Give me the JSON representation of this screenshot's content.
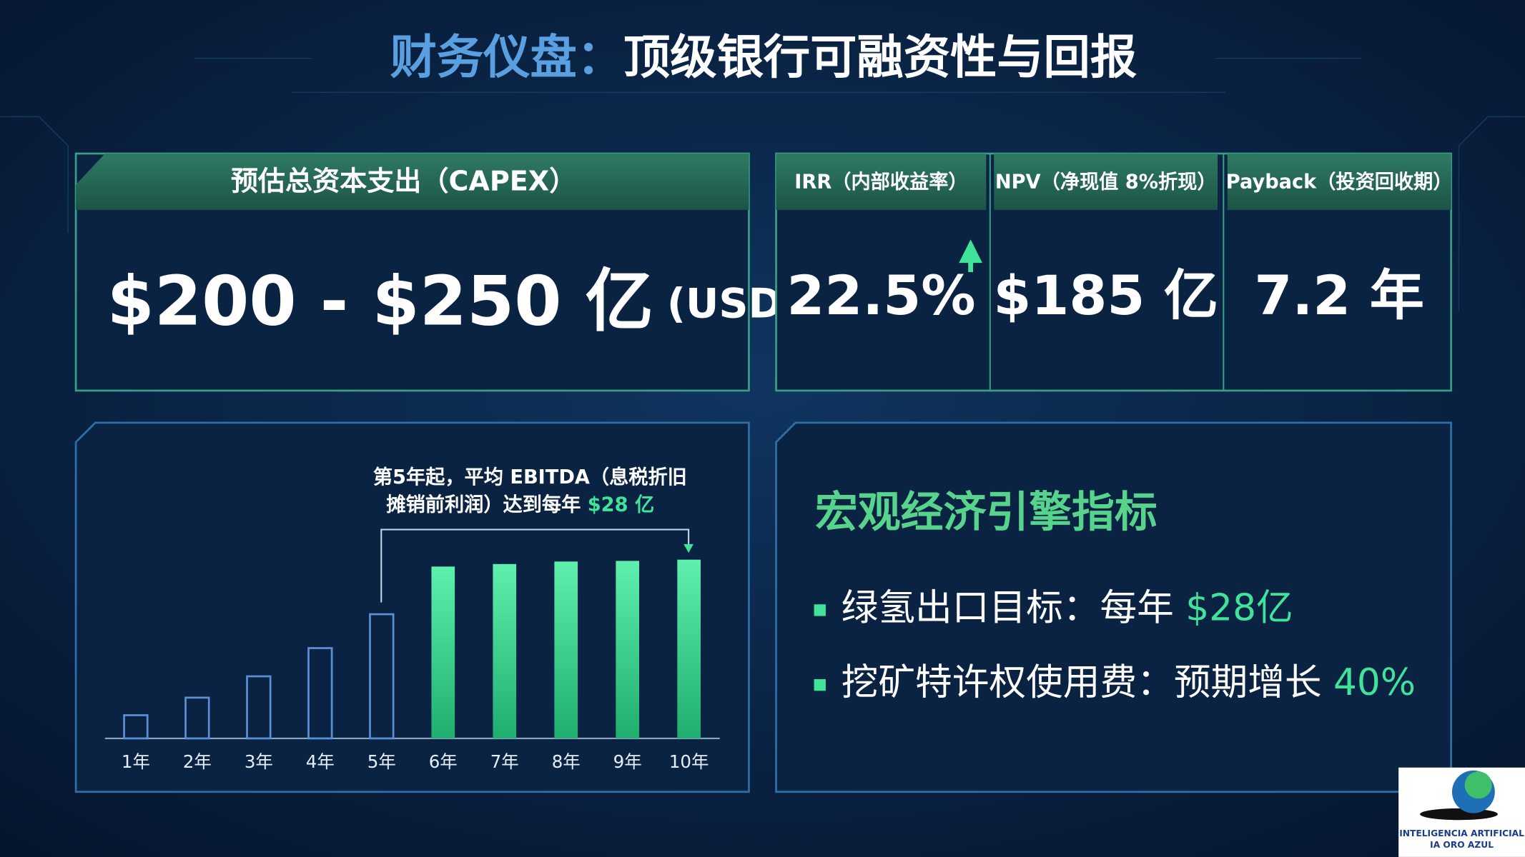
{
  "header": {
    "title_lead": "财务仪盘：",
    "title_main": "顶级银行可融资性与回报"
  },
  "capex": {
    "label": "预估总资本支出（CAPEX）",
    "value": "$200 - $250 亿",
    "unit": "(USD)"
  },
  "kpis": [
    {
      "label": "IRR（内部收益率）",
      "value": "22.5%"
    },
    {
      "label": "NPV（净现值 8%折现）",
      "value": "$185 亿"
    },
    {
      "label": "Payback（投资回收期）",
      "value": "7.2 年"
    }
  ],
  "chart_data": {
    "type": "bar",
    "annotation": [
      "第5年起，平均 EBITDA（息税折旧",
      "摊销前利润）达到每年 ",
      "$28 亿"
    ],
    "categories": [
      "1年",
      "2年",
      "3年",
      "4年",
      "5年",
      "6年",
      "7年",
      "8年",
      "9年",
      "10年"
    ],
    "values": [
      3.7,
      6.5,
      9.9,
      14.4,
      19.8,
      27.4,
      27.8,
      28.2,
      28.3,
      28.5
    ],
    "colors": [
      "#5b8fd6",
      "#5b8fd6",
      "#5b8fd6",
      "#5b8fd6",
      "#5b8fd6",
      "#3fe39a",
      "#3fe39a",
      "#3fe39a",
      "#3fe39a",
      "#3fe39a"
    ],
    "filled": [
      false,
      false,
      false,
      false,
      false,
      true,
      true,
      true,
      true,
      true
    ]
  },
  "macro": {
    "title": "宏观经济引擎指标",
    "items": [
      {
        "text": "绿氢出口目标：每年 ",
        "highlight": "$28亿"
      },
      {
        "text": "挖矿特许权使用费：预期增长 ",
        "highlight": "40%"
      }
    ]
  },
  "logo": {
    "line1": "INTELIGENCIA ARTIFICIAL",
    "line2": "IA ORO AZUL"
  }
}
